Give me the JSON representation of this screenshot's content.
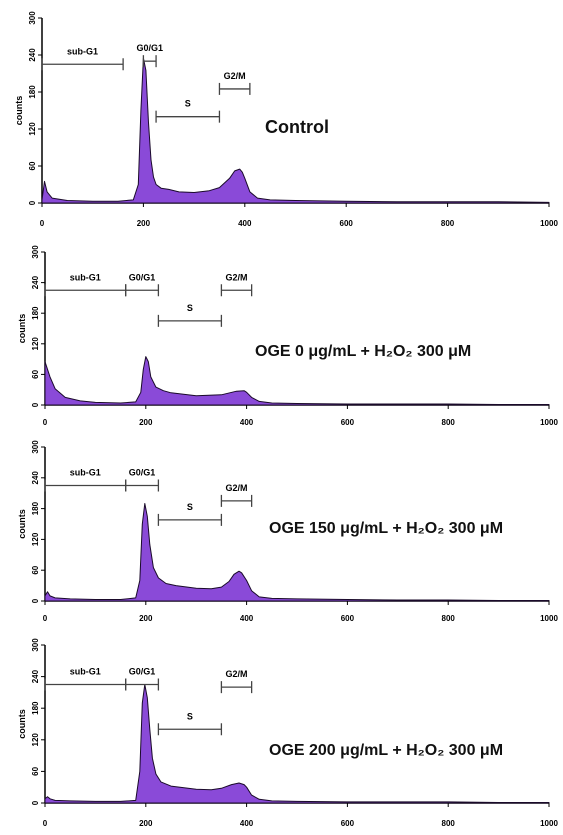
{
  "chart_data": [
    {
      "type": "area",
      "title": "Control",
      "ylabel": "counts",
      "xlim": [
        0,
        1000
      ],
      "ylim": [
        0,
        300
      ],
      "xticks": [
        "0",
        "200",
        "400",
        "600",
        "800",
        "1000"
      ],
      "yticks": [
        "0",
        "60",
        "120",
        "180",
        "240",
        "300"
      ],
      "gates": [
        {
          "label": "sub-G1",
          "range": [
            0,
            160
          ],
          "level": 225
        },
        {
          "label": "G0/G1",
          "range": [
            200,
            225
          ],
          "level": 230
        },
        {
          "label": "S",
          "range": [
            225,
            350
          ],
          "level": 140
        },
        {
          "label": "G2/M",
          "range": [
            350,
            410
          ],
          "level": 185
        }
      ],
      "series": [
        {
          "x": [
            0,
            5,
            10,
            20,
            50,
            100,
            150,
            180,
            190,
            195,
            200,
            205,
            210,
            215,
            220,
            225,
            235,
            250,
            270,
            300,
            330,
            350,
            370,
            380,
            390,
            395,
            400,
            410,
            425,
            450,
            500,
            600,
            700,
            800,
            900,
            1000
          ],
          "y": [
            5,
            35,
            18,
            8,
            4,
            3,
            3,
            5,
            30,
            150,
            235,
            215,
            130,
            70,
            42,
            30,
            24,
            22,
            18,
            17,
            20,
            25,
            40,
            52,
            55,
            50,
            40,
            18,
            8,
            5,
            4,
            3,
            2,
            2,
            2,
            1
          ]
        }
      ]
    },
    {
      "type": "area",
      "title": "OGE 0 μg/mL + H₂O₂ 300 μM",
      "ylabel": "counts",
      "xlim": [
        0,
        1000
      ],
      "ylim": [
        0,
        300
      ],
      "xticks": [
        "0",
        "200",
        "400",
        "600",
        "800",
        "1000"
      ],
      "yticks": [
        "0",
        "60",
        "120",
        "180",
        "240",
        "300"
      ],
      "gates": [
        {
          "label": "sub-G1",
          "range": [
            0,
            160
          ],
          "level": 225
        },
        {
          "label": "G0/G1",
          "range": [
            160,
            225
          ],
          "level": 225
        },
        {
          "label": "S",
          "range": [
            225,
            350
          ],
          "level": 165
        },
        {
          "label": "G2/M",
          "range": [
            350,
            410
          ],
          "level": 225
        }
      ],
      "series": [
        {
          "x": [
            0,
            5,
            10,
            20,
            40,
            70,
            100,
            150,
            180,
            190,
            195,
            200,
            205,
            210,
            220,
            235,
            250,
            300,
            350,
            380,
            395,
            400,
            410,
            425,
            450,
            500,
            600,
            700,
            800,
            900,
            1000
          ],
          "y": [
            85,
            70,
            55,
            32,
            15,
            8,
            5,
            4,
            6,
            25,
            70,
            95,
            85,
            55,
            35,
            28,
            24,
            18,
            20,
            27,
            28,
            25,
            15,
            7,
            4,
            3,
            2,
            2,
            2,
            1,
            1
          ]
        }
      ]
    },
    {
      "type": "area",
      "title": "OGE 150 μg/mL + H₂O₂ 300 μM",
      "ylabel": "counts",
      "xlim": [
        0,
        1000
      ],
      "ylim": [
        0,
        300
      ],
      "xticks": [
        "0",
        "200",
        "400",
        "600",
        "800",
        "1000"
      ],
      "yticks": [
        "0",
        "60",
        "120",
        "180",
        "240",
        "300"
      ],
      "gates": [
        {
          "label": "sub-G1",
          "range": [
            0,
            160
          ],
          "level": 225
        },
        {
          "label": "G0/G1",
          "range": [
            160,
            225
          ],
          "level": 225
        },
        {
          "label": "S",
          "range": [
            225,
            350
          ],
          "level": 158
        },
        {
          "label": "G2/M",
          "range": [
            350,
            410
          ],
          "level": 195
        }
      ],
      "series": [
        {
          "x": [
            0,
            5,
            10,
            20,
            50,
            100,
            150,
            180,
            188,
            193,
            198,
            203,
            208,
            215,
            225,
            240,
            260,
            300,
            330,
            350,
            365,
            375,
            385,
            390,
            400,
            410,
            425,
            450,
            500,
            600,
            700,
            800,
            900,
            1000
          ],
          "y": [
            10,
            18,
            10,
            6,
            4,
            3,
            3,
            6,
            40,
            150,
            190,
            165,
            110,
            65,
            45,
            34,
            30,
            25,
            24,
            27,
            38,
            52,
            58,
            55,
            40,
            20,
            8,
            5,
            4,
            3,
            2,
            2,
            1,
            1
          ]
        }
      ]
    },
    {
      "type": "area",
      "title": "OGE 200 μg/mL + H₂O₂ 300 μM",
      "ylabel": "counts",
      "xlim": [
        0,
        1000
      ],
      "ylim": [
        0,
        300
      ],
      "xticks": [
        "0",
        "200",
        "400",
        "600",
        "800",
        "1000"
      ],
      "yticks": [
        "0",
        "60",
        "120",
        "180",
        "240",
        "300"
      ],
      "gates": [
        {
          "label": "sub-G1",
          "range": [
            0,
            160
          ],
          "level": 225
        },
        {
          "label": "G0/G1",
          "range": [
            160,
            225
          ],
          "level": 225
        },
        {
          "label": "S",
          "range": [
            225,
            350
          ],
          "level": 140
        },
        {
          "label": "G2/M",
          "range": [
            350,
            410
          ],
          "level": 220
        }
      ],
      "series": [
        {
          "x": [
            0,
            5,
            10,
            20,
            50,
            100,
            150,
            180,
            188,
            193,
            198,
            203,
            208,
            213,
            220,
            230,
            250,
            300,
            330,
            350,
            370,
            385,
            395,
            400,
            410,
            425,
            450,
            500,
            600,
            700,
            800,
            900,
            1000
          ],
          "y": [
            8,
            12,
            8,
            5,
            4,
            3,
            3,
            5,
            60,
            190,
            225,
            200,
            140,
            85,
            55,
            40,
            32,
            26,
            25,
            28,
            35,
            38,
            35,
            30,
            15,
            7,
            4,
            3,
            2,
            2,
            2,
            1,
            1
          ]
        }
      ]
    }
  ]
}
